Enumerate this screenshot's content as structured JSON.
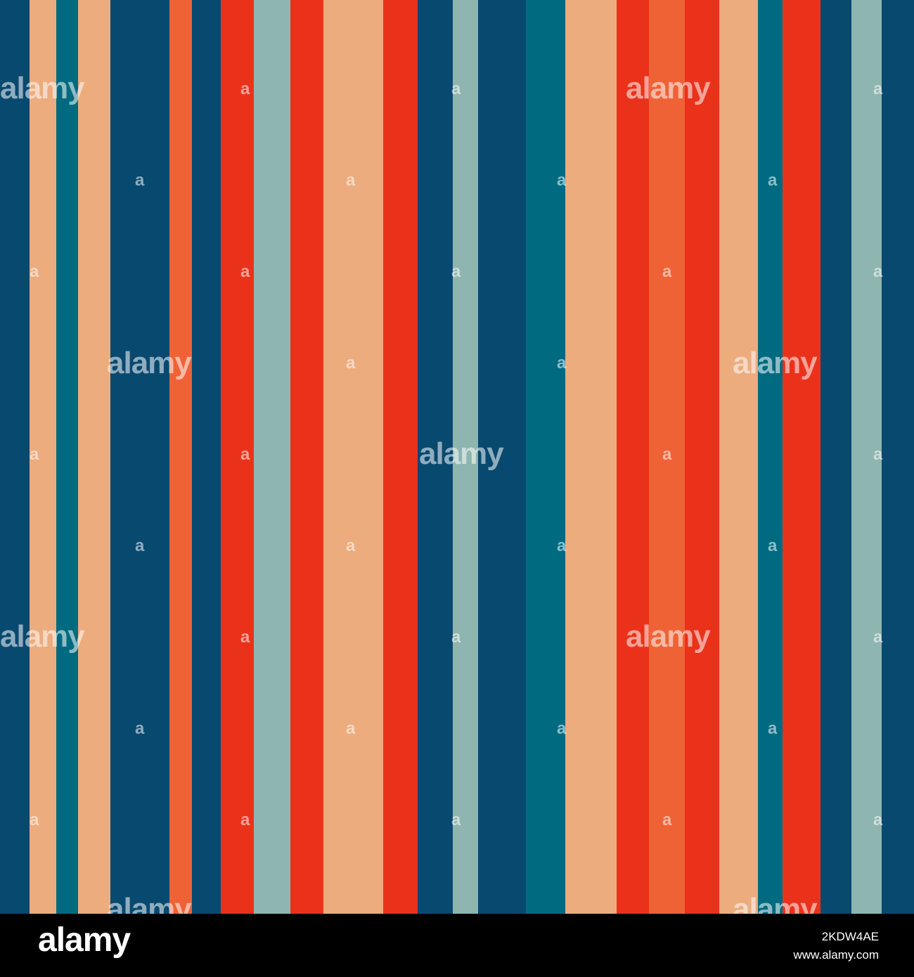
{
  "colors": {
    "navy": "#08496f",
    "teal": "#006a80",
    "peach": "#ecac7d",
    "sage": "#8eb5b0",
    "orange": "#ef6235",
    "red": "#ea321b",
    "footer_bg": "#000000",
    "footer_text": "#ffffff"
  },
  "stripes": [
    {
      "color": "navy",
      "width": 42
    },
    {
      "color": "peach",
      "width": 38
    },
    {
      "color": "teal",
      "width": 31
    },
    {
      "color": "peach",
      "width": 46
    },
    {
      "color": "navy",
      "width": 84
    },
    {
      "color": "orange",
      "width": 32
    },
    {
      "color": "navy",
      "width": 41
    },
    {
      "color": "red",
      "width": 47
    },
    {
      "color": "sage",
      "width": 52
    },
    {
      "color": "red",
      "width": 47
    },
    {
      "color": "peach",
      "width": 85
    },
    {
      "color": "red",
      "width": 49
    },
    {
      "color": "navy",
      "width": 50
    },
    {
      "color": "sage",
      "width": 36
    },
    {
      "color": "navy",
      "width": 68
    },
    {
      "color": "teal",
      "width": 56
    },
    {
      "color": "peach",
      "width": 73
    },
    {
      "color": "red",
      "width": 46
    },
    {
      "color": "orange",
      "width": 51
    },
    {
      "color": "red",
      "width": 49
    },
    {
      "color": "peach",
      "width": 55
    },
    {
      "color": "teal",
      "width": 35
    },
    {
      "color": "red",
      "width": 54
    },
    {
      "color": "navy",
      "width": 44
    },
    {
      "color": "sage",
      "width": 43
    },
    {
      "color": "navy",
      "width": 46
    }
  ],
  "watermark": {
    "text": "alamy",
    "short": "a"
  },
  "footer": {
    "logo": "alamy",
    "image_id": "2KDW4AE",
    "url": "www.alamy.com"
  }
}
